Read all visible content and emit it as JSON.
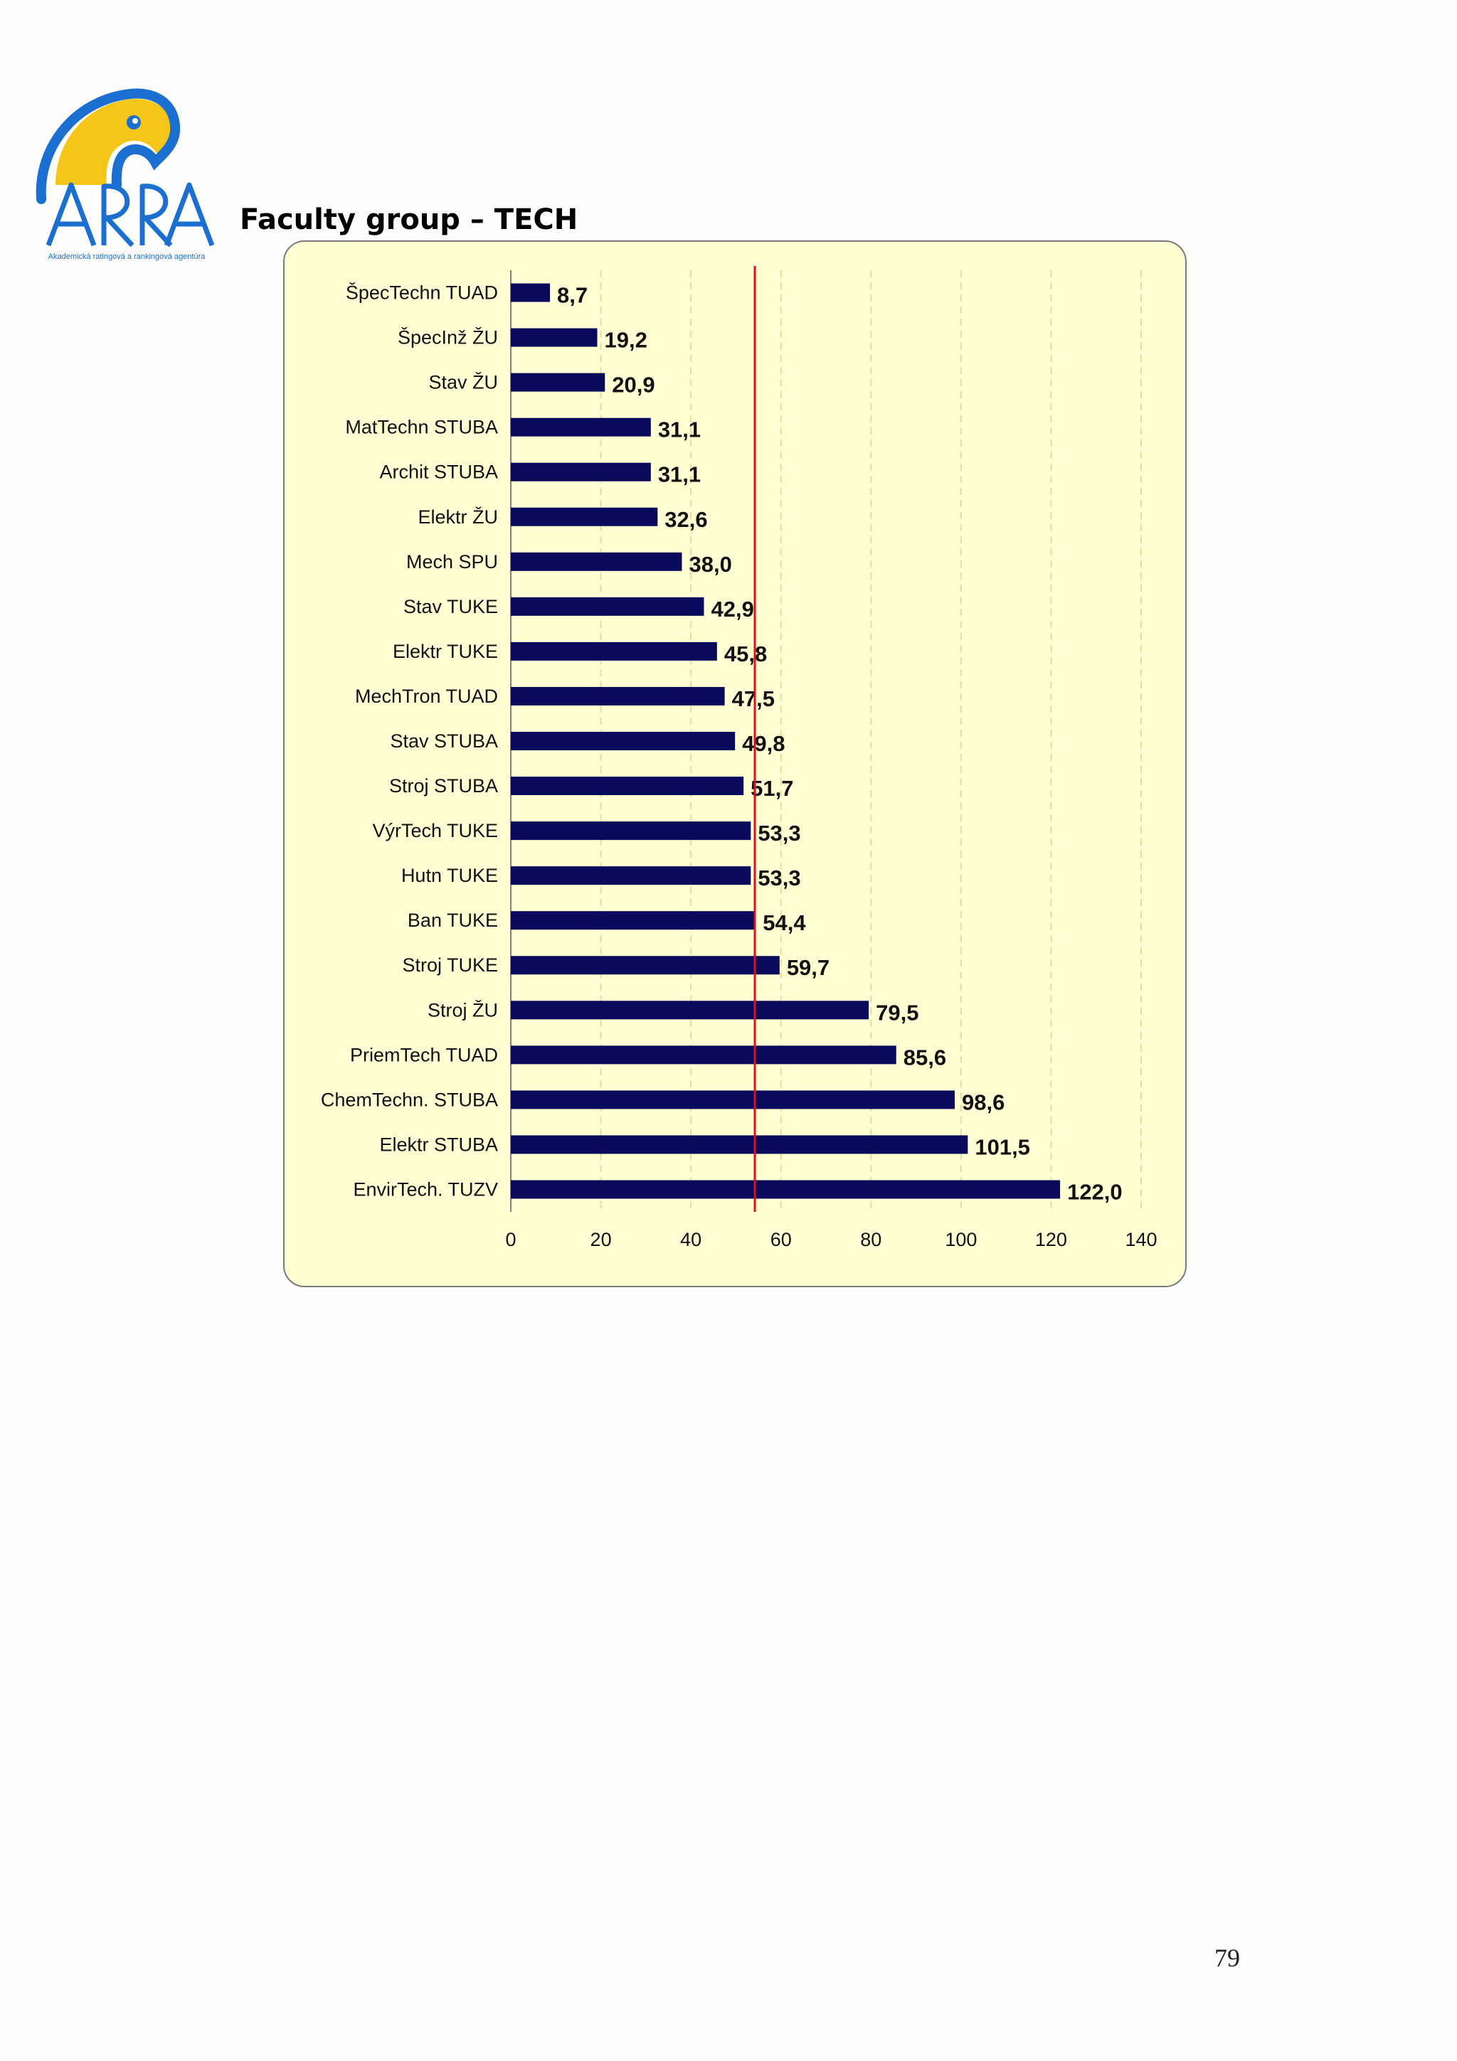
{
  "logo": {
    "name": "ARRA",
    "tagline": "Akademická ratingová a rankingová agentúra"
  },
  "heading": "Faculty group – TECH",
  "page_number": "79",
  "colors": {
    "panel_bg": "#ffffd3",
    "bar": "#0a0a5c",
    "reference_line": "#e0101a",
    "gridline": "#e6dca0",
    "logo_yellow": "#f5c518",
    "logo_blue": "#1a6fd0"
  },
  "chart_data": {
    "type": "bar",
    "orientation": "horizontal",
    "title": "Faculty group – TECH",
    "xlabel": "",
    "ylabel": "",
    "xlim": [
      0,
      140
    ],
    "xticks": [
      0,
      20,
      40,
      60,
      80,
      100,
      120,
      140
    ],
    "grid": "vertical dashed",
    "reference_line_value": 54.2,
    "categories": [
      "ŠpecTechn TUAD",
      "ŠpecInž ŽU",
      "Stav ŽU",
      "MatTechn STUBA",
      "Archit STUBA",
      "Elektr ŽU",
      "Mech SPU",
      "Stav TUKE",
      "Elektr TUKE",
      "MechTron TUAD",
      "Stav STUBA",
      "Stroj STUBA",
      "VýrTech TUKE",
      "Hutn TUKE",
      "Ban TUKE",
      "Stroj TUKE",
      "Stroj ŽU",
      "PriemTech TUAD",
      "ChemTechn. STUBA",
      "Elektr STUBA",
      "EnvirTech. TUZV"
    ],
    "values": [
      8.7,
      19.2,
      20.9,
      31.1,
      31.1,
      32.6,
      38.0,
      42.9,
      45.8,
      47.5,
      49.8,
      51.7,
      53.3,
      53.3,
      54.4,
      59.7,
      79.5,
      85.6,
      98.6,
      101.5,
      122.0
    ],
    "value_labels": [
      "8,7",
      "19,2",
      "20,9",
      "31,1",
      "31,1",
      "32,6",
      "38,0",
      "42,9",
      "45,8",
      "47,5",
      "49,8",
      "51,7",
      "53,3",
      "53,3",
      "54,4",
      "59,7",
      "79,5",
      "85,6",
      "98,6",
      "101,5",
      "122,0"
    ]
  }
}
